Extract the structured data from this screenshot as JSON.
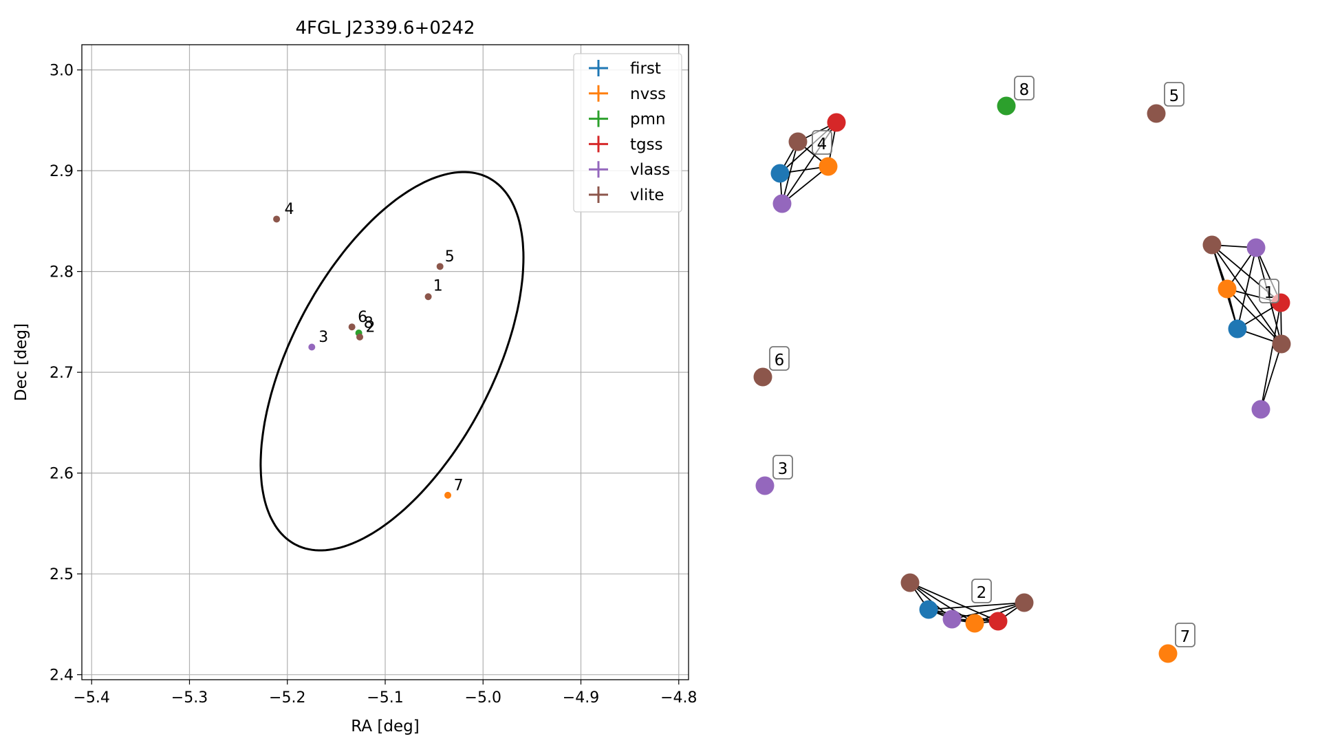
{
  "chart_data": [
    {
      "type": "scatter",
      "title": "4FGL J2339.6+0242",
      "xlabel": "RA [deg]",
      "ylabel": "Dec [deg]",
      "xlim": [
        -5.41,
        -4.79
      ],
      "ylim": [
        2.395,
        3.025
      ],
      "xticks": [
        -5.4,
        -5.3,
        -5.2,
        -5.1,
        -5.0,
        -4.9,
        -4.8
      ],
      "xtick_labels": [
        "−5.4",
        "−5.3",
        "−5.2",
        "−5.1",
        "−5.0",
        "−4.9",
        "−4.8"
      ],
      "yticks": [
        2.4,
        2.5,
        2.6,
        2.7,
        2.8,
        2.9,
        3.0
      ],
      "ytick_labels": [
        "2.4",
        "2.5",
        "2.6",
        "2.7",
        "2.8",
        "2.9",
        "3.0"
      ],
      "grid": true,
      "legend_position": "top-right",
      "series": [
        {
          "name": "first",
          "color": "#1f77b4"
        },
        {
          "name": "nvss",
          "color": "#ff7f0e"
        },
        {
          "name": "pmn",
          "color": "#2ca02c"
        },
        {
          "name": "tgss",
          "color": "#d62728"
        },
        {
          "name": "vlass",
          "color": "#9467bd"
        },
        {
          "name": "vlite",
          "color": "#8c564b"
        }
      ],
      "points": [
        {
          "series": "vlite",
          "x": -5.211,
          "y": 2.852
        },
        {
          "series": "vlite",
          "x": -5.044,
          "y": 2.805
        },
        {
          "series": "vlite",
          "x": -5.056,
          "y": 2.775
        },
        {
          "series": "vlite",
          "x": -5.134,
          "y": 2.745
        },
        {
          "series": "pmn",
          "x": -5.127,
          "y": 2.739
        },
        {
          "series": "vlite",
          "x": -5.126,
          "y": 2.735
        },
        {
          "series": "vlass",
          "x": -5.175,
          "y": 2.725
        },
        {
          "series": "nvss",
          "x": -5.036,
          "y": 2.578
        }
      ],
      "annotations": [
        {
          "text": "4",
          "x": -5.203,
          "y": 2.857
        },
        {
          "text": "5",
          "x": -5.039,
          "y": 2.81
        },
        {
          "text": "1",
          "x": -5.051,
          "y": 2.781
        },
        {
          "text": "6",
          "x": -5.128,
          "y": 2.75
        },
        {
          "text": "8",
          "x": -5.122,
          "y": 2.744
        },
        {
          "text": "2",
          "x": -5.12,
          "y": 2.74
        },
        {
          "text": "3",
          "x": -5.168,
          "y": 2.73
        },
        {
          "text": "7",
          "x": -5.03,
          "y": 2.583
        }
      ],
      "ellipse": {
        "center_x": -5.093,
        "center_y": 2.711,
        "semi_major": 0.207,
        "semi_minor": 0.102,
        "angle_deg": 61
      }
    },
    {
      "type": "network",
      "node_colors": {
        "first": "#1f77b4",
        "nvss": "#ff7f0e",
        "pmn": "#2ca02c",
        "tgss": "#d62728",
        "vlass": "#9467bd",
        "vlite": "#8c564b"
      },
      "groups": [
        {
          "label": "1",
          "nodes": [
            "vlite",
            "vlass",
            "nvss",
            "tgss",
            "first",
            "vlite",
            "vlass"
          ]
        },
        {
          "label": "2",
          "nodes": [
            "vlite",
            "first",
            "vlass",
            "nvss",
            "tgss",
            "vlite"
          ]
        },
        {
          "label": "3",
          "nodes": [
            "vlass"
          ]
        },
        {
          "label": "4",
          "nodes": [
            "vlite",
            "tgss",
            "first",
            "nvss",
            "vlass"
          ]
        },
        {
          "label": "5",
          "nodes": [
            "vlite"
          ]
        },
        {
          "label": "6",
          "nodes": [
            "vlite"
          ]
        },
        {
          "label": "7",
          "nodes": [
            "nvss"
          ]
        },
        {
          "label": "8",
          "nodes": [
            "pmn"
          ]
        }
      ]
    }
  ]
}
